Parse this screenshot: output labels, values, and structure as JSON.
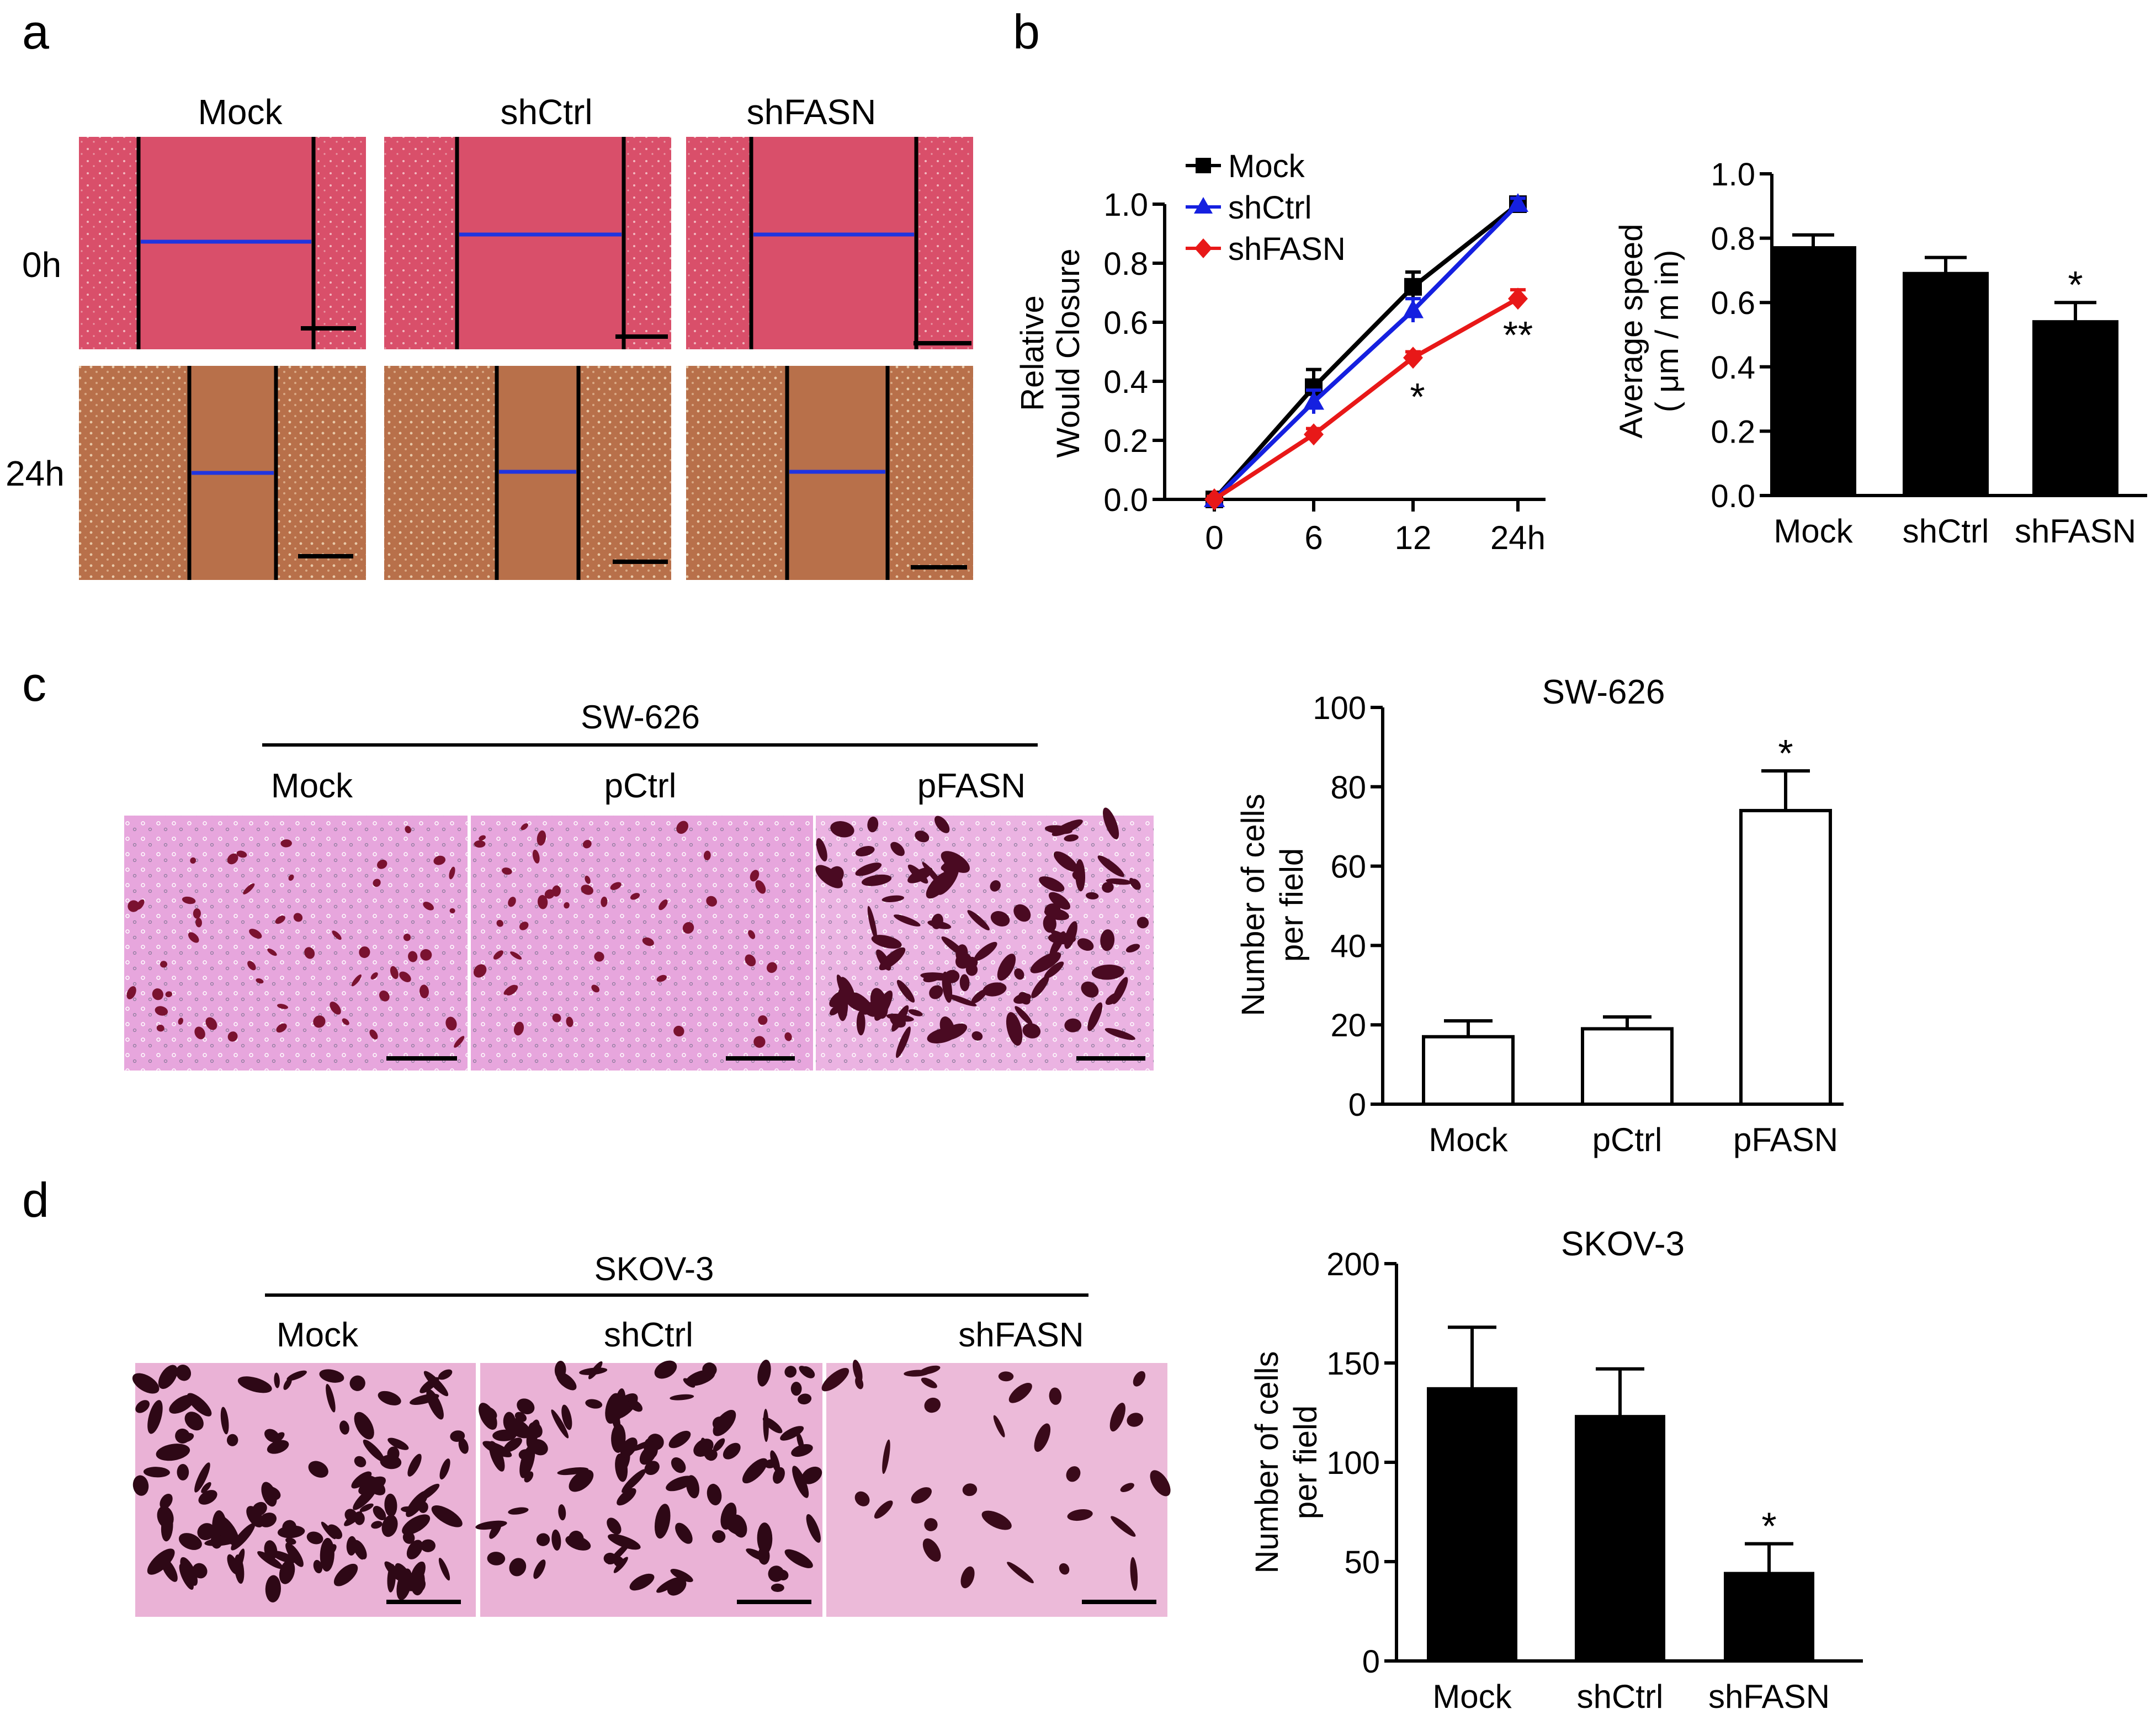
{
  "panels": {
    "a": "a",
    "b": "b",
    "c": "c",
    "d": "d"
  },
  "panel_a": {
    "columns": [
      "Mock",
      "shCtrl",
      "shFASN"
    ],
    "rows": [
      "0h",
      "24h"
    ],
    "colors": {
      "early": "#d94f6a",
      "late": "#b8704a",
      "arrow": "#2035e0"
    }
  },
  "panel_c": {
    "group_label": "SW-626",
    "columns": [
      "Mock",
      "pCtrl",
      "pFASN"
    ],
    "colors": {
      "bg": "#e7a6dd",
      "cell": "#7a1230"
    }
  },
  "panel_d": {
    "group_label": "SKOV-3",
    "columns": [
      "Mock",
      "shCtrl",
      "shFASN"
    ],
    "colors": {
      "bg": "#eab2d6",
      "cell": "#3a0a1a"
    }
  },
  "chart_data": [
    {
      "id": "line_closure",
      "type": "line",
      "title": "",
      "xlabel": "",
      "ylabel": [
        "Relative",
        "Would Closure"
      ],
      "x": [
        "0",
        "6",
        "12",
        "24h"
      ],
      "ylim": [
        0,
        1.0
      ],
      "yticks": [
        "0.0",
        "0.2",
        "0.4",
        "0.6",
        "0.8",
        "1.0"
      ],
      "legend": "top-left",
      "series": [
        {
          "name": "Mock",
          "color": "#000000",
          "marker": "square",
          "values": [
            0,
            0.38,
            0.72,
            1.0
          ],
          "errors": [
            0.01,
            0.06,
            0.05,
            0.02
          ]
        },
        {
          "name": "shCtrl",
          "color": "#1520e0",
          "marker": "triangle",
          "values": [
            0,
            0.33,
            0.64,
            1.0
          ],
          "errors": [
            0.01,
            0.04,
            0.04,
            0.02
          ]
        },
        {
          "name": "shFASN",
          "color": "#e81818",
          "marker": "diamond",
          "values": [
            0,
            0.22,
            0.48,
            0.68
          ],
          "errors": [
            0.01,
            0.02,
            0.02,
            0.03
          ],
          "annotations": [
            {
              "x": "12",
              "text": "*"
            },
            {
              "x": "24h",
              "text": "**"
            }
          ]
        }
      ]
    },
    {
      "id": "bar_speed",
      "type": "bar",
      "title": "",
      "xlabel": "",
      "ylabel": [
        "Average speed",
        "( μm / m in)"
      ],
      "categories": [
        "Mock",
        "shCtrl",
        "shFASN"
      ],
      "values": [
        0.77,
        0.69,
        0.54
      ],
      "errors": [
        0.04,
        0.05,
        0.06
      ],
      "annotations": [
        "",
        "",
        "*"
      ],
      "fill": "#000000",
      "ylim": [
        0,
        1.0
      ],
      "yticks": [
        "0.0",
        "0.2",
        "0.4",
        "0.6",
        "0.8",
        "1.0"
      ]
    },
    {
      "id": "bar_sw626",
      "type": "bar",
      "title": "SW-626",
      "xlabel": "",
      "ylabel": [
        "Number of cells",
        "per field"
      ],
      "categories": [
        "Mock",
        "pCtrl",
        "pFASN"
      ],
      "values": [
        17,
        19,
        74
      ],
      "errors": [
        4,
        3,
        10
      ],
      "annotations": [
        "",
        "",
        "*"
      ],
      "fill": "#ffffff",
      "ylim": [
        0,
        100
      ],
      "yticks": [
        "0",
        "20",
        "40",
        "60",
        "80",
        "100"
      ]
    },
    {
      "id": "bar_skov3",
      "type": "bar",
      "title": "SKOV-3",
      "xlabel": "",
      "ylabel": [
        "Number of cells",
        "per field"
      ],
      "categories": [
        "Mock",
        "shCtrl",
        "shFASN"
      ],
      "values": [
        137,
        123,
        44
      ],
      "errors": [
        31,
        24,
        15
      ],
      "annotations": [
        "",
        "",
        "*"
      ],
      "fill": "#000000",
      "ylim": [
        0,
        200
      ],
      "yticks": [
        "0",
        "50",
        "100",
        "150",
        "200"
      ]
    }
  ]
}
